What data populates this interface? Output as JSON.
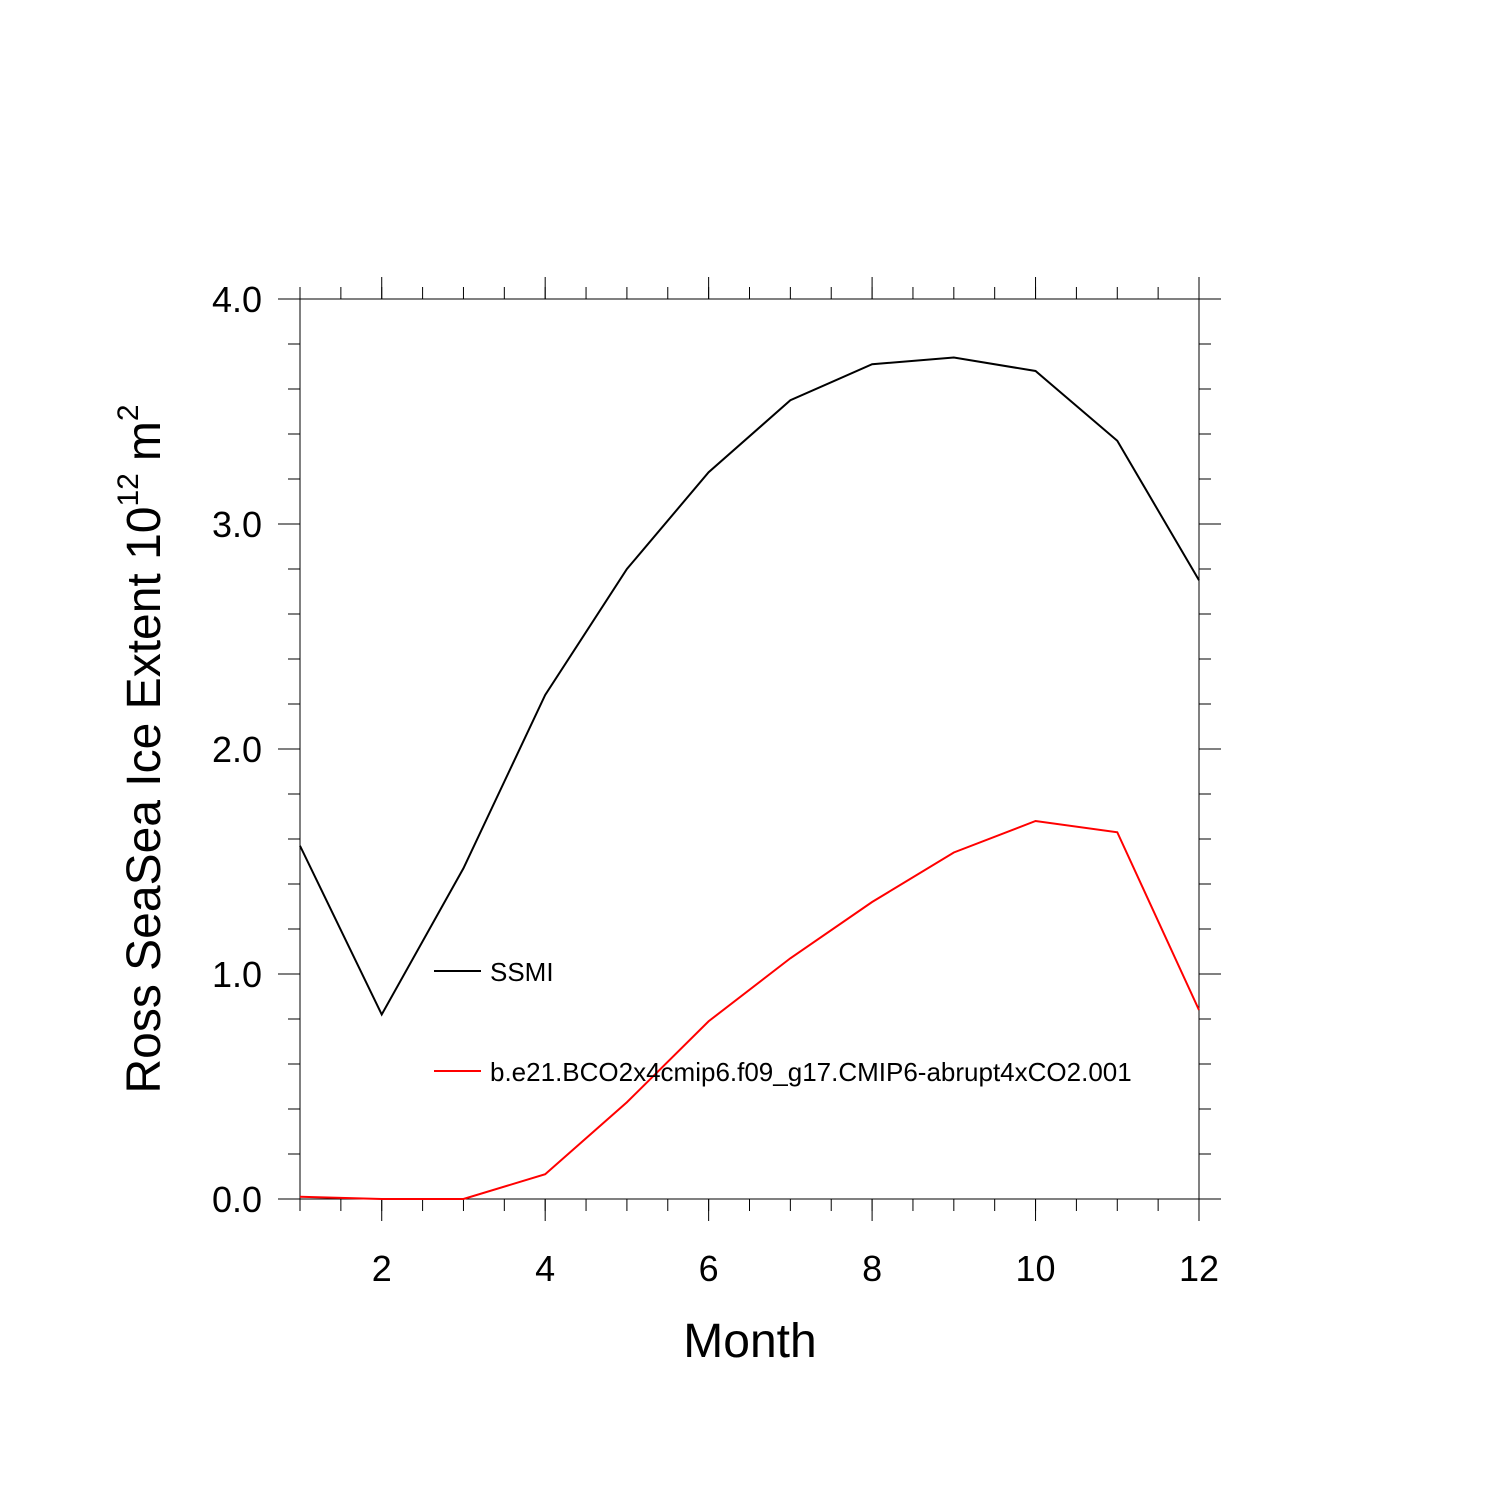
{
  "chart_data": {
    "type": "line",
    "xlabel": "Month",
    "ylabel_parts": [
      "Ross SeaSea Ice Extent 10",
      "12",
      "m",
      "2"
    ],
    "x": [
      1,
      2,
      3,
      4,
      5,
      6,
      7,
      8,
      9,
      10,
      11,
      12
    ],
    "series": [
      {
        "name": "SSMI",
        "color": "#000000",
        "values": [
          1.57,
          0.82,
          1.47,
          2.24,
          2.8,
          3.23,
          3.55,
          3.71,
          3.74,
          3.68,
          3.37,
          2.75
        ]
      },
      {
        "name": "b.e21.BCO2x4cmip6.f09_g17.CMIP6-abrupt4xCO2.001",
        "color": "#ff0000",
        "values": [
          0.01,
          0,
          0,
          0.11,
          0.43,
          0.79,
          1.07,
          1.32,
          1.54,
          1.68,
          1.63,
          0.84
        ]
      }
    ],
    "xlim": [
      1,
      12
    ],
    "xticks": [
      2,
      4,
      6,
      8,
      10,
      12
    ],
    "ylim": [
      0,
      4
    ],
    "yticks": [
      {
        "value": 0,
        "label": "0.0"
      },
      {
        "value": 1,
        "label": "1.0"
      },
      {
        "value": 2,
        "label": "2.0"
      },
      {
        "value": 3,
        "label": "3.0"
      },
      {
        "value": 4,
        "label": "4.0"
      }
    ]
  }
}
